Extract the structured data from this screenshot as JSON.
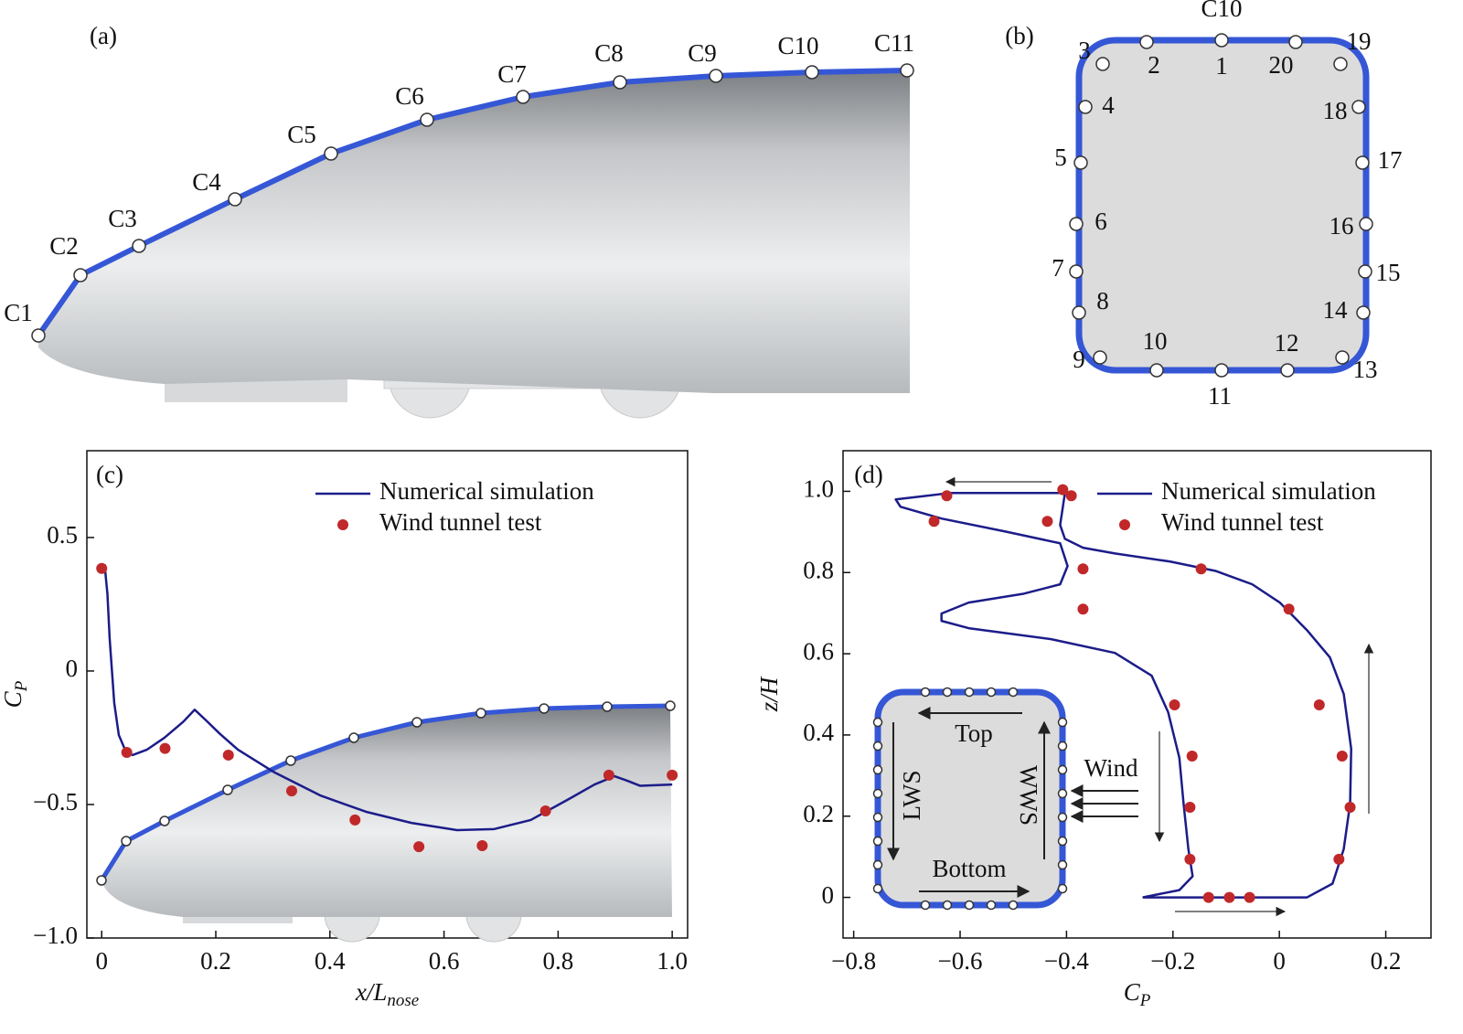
{
  "panels": {
    "a": {
      "label": "(a)",
      "points": [
        "C1",
        "C2",
        "C3",
        "C4",
        "C5",
        "C6",
        "C7",
        "C8",
        "C9",
        "C10",
        "C11"
      ]
    },
    "b": {
      "label": "(b)",
      "top_label": "C10",
      "points": [
        "1",
        "2",
        "3",
        "4",
        "5",
        "6",
        "7",
        "8",
        "9",
        "10",
        "11",
        "12",
        "13",
        "14",
        "15",
        "16",
        "17",
        "18",
        "19",
        "20"
      ]
    }
  },
  "chart_data": [
    {
      "type": "line",
      "panel_label": "(c)",
      "xlabel": {
        "text": "x/L",
        "sub": "nose"
      },
      "ylabel": {
        "text": "C",
        "sub": "P"
      },
      "xlim": [
        -0.026,
        1.027
      ],
      "ylim": [
        -1.0,
        0.825
      ],
      "xticks": [
        0,
        0.2,
        0.4,
        0.6,
        0.8,
        {
          "value": 1,
          "label": "1.0"
        }
      ],
      "yticks": [
        {
          "value": -1,
          "label": "−1.0"
        },
        {
          "value": -0.5,
          "label": "−0.5"
        },
        0,
        0.5
      ],
      "series": [
        {
          "name": "Numerical simulation",
          "color": "#1c1c8a",
          "mode": "line",
          "x": [
            0.005,
            0.01,
            0.014,
            0.022,
            0.03,
            0.042,
            0.054,
            0.079,
            0.11,
            0.143,
            0.163,
            0.183,
            0.207,
            0.239,
            0.303,
            0.383,
            0.463,
            0.543,
            0.623,
            0.688,
            0.752,
            0.816,
            0.864,
            0.899,
            0.92,
            0.944,
            1.0
          ],
          "values": [
            0.4,
            0.29,
            0.12,
            -0.12,
            -0.24,
            -0.3,
            -0.315,
            -0.295,
            -0.25,
            -0.19,
            -0.145,
            -0.185,
            -0.235,
            -0.295,
            -0.38,
            -0.466,
            -0.527,
            -0.569,
            -0.596,
            -0.592,
            -0.558,
            -0.483,
            -0.425,
            -0.394,
            -0.41,
            -0.43,
            -0.425
          ]
        },
        {
          "name": "Wind tunnel test",
          "color": "#c0282a",
          "mode": "markers",
          "x": [
            0,
            0.044,
            0.111,
            0.222,
            0.333,
            0.444,
            0.556,
            0.667,
            0.778,
            0.889,
            1.0
          ],
          "values": [
            0.384,
            -0.305,
            -0.29,
            -0.315,
            -0.449,
            -0.558,
            -0.658,
            -0.654,
            -0.524,
            -0.39,
            -0.39
          ]
        }
      ]
    },
    {
      "type": "line",
      "panel_label": "(d)",
      "xlabel": {
        "text": "C",
        "sub": "P"
      },
      "ylabel": {
        "text": "z/H"
      },
      "xlim": [
        -0.82,
        0.285
      ],
      "ylim": [
        -0.1,
        1.1
      ],
      "xticks": [
        {
          "value": -0.8,
          "label": "−0.8"
        },
        {
          "value": -0.6,
          "label": "−0.6"
        },
        {
          "value": -0.4,
          "label": "−0.4"
        },
        {
          "value": -0.2,
          "label": "−0.2"
        },
        0,
        0.2
      ],
      "yticks": [
        0,
        0.2,
        0.4,
        0.6,
        0.8,
        {
          "value": 1,
          "label": "1.0"
        }
      ],
      "annotations": [
        "Top",
        "LWS",
        "WWS",
        "Bottom",
        "Wind"
      ],
      "series": [
        {
          "name": "Numerical simulation",
          "color": "#1c1c8a",
          "mode": "line",
          "x": [
            -0.257,
            0.052,
            0.1,
            0.121,
            0.133,
            0.135,
            0.121,
            0.095,
            0.052,
            0.001,
            -0.051,
            -0.12,
            -0.205,
            -0.309,
            -0.369,
            -0.403,
            -0.412,
            -0.403,
            -0.618,
            -0.721,
            -0.712,
            -0.635,
            -0.515,
            -0.412,
            -0.398,
            -0.412,
            -0.48,
            -0.584,
            -0.635,
            -0.635,
            -0.584,
            -0.429,
            -0.309,
            -0.24,
            -0.209,
            -0.188,
            -0.18,
            -0.171,
            -0.163,
            -0.188,
            -0.257
          ],
          "values": [
            0,
            0,
            0.034,
            0.119,
            0.231,
            0.366,
            0.501,
            0.591,
            0.658,
            0.726,
            0.771,
            0.804,
            0.827,
            0.847,
            0.861,
            0.883,
            0.917,
            0.996,
            0.996,
            0.98,
            0.962,
            0.933,
            0.901,
            0.872,
            0.816,
            0.771,
            0.748,
            0.726,
            0.699,
            0.681,
            0.663,
            0.636,
            0.602,
            0.546,
            0.456,
            0.344,
            0.231,
            0.119,
            0.052,
            0.018,
            0
          ]
        },
        {
          "name": "Wind tunnel test",
          "color": "#c0282a",
          "mode": "markers",
          "x": [
            -0.407,
            -0.391,
            -0.625,
            -0.649,
            -0.436,
            -0.369,
            -0.147,
            -0.369,
            0.018,
            -0.197,
            0.075,
            -0.164,
            0.118,
            -0.168,
            0.133,
            -0.168,
            0.112,
            -0.133,
            -0.094,
            -0.056
          ],
          "values": [
            1.004,
            0.989,
            0.989,
            0.926,
            0.926,
            0.809,
            0.809,
            0.71,
            0.71,
            0.474,
            0.474,
            0.348,
            0.348,
            0.222,
            0.222,
            0.094,
            0.094,
            0,
            0,
            0
          ]
        }
      ]
    }
  ]
}
